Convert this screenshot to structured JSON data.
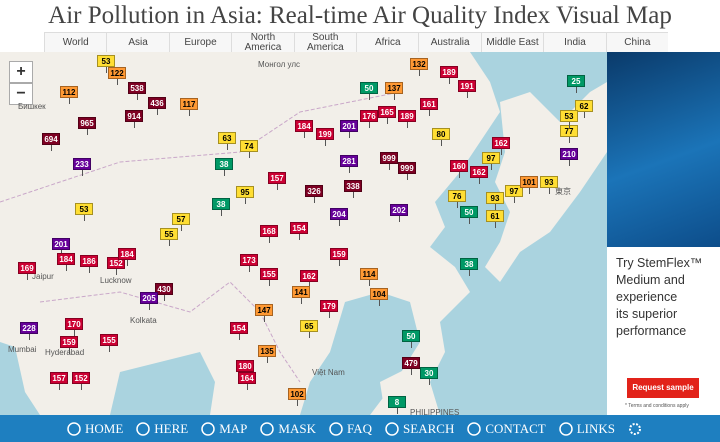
{
  "header": {
    "title": "Air Pollution in Asia: Real-time Air Quality Index Visual Map"
  },
  "nav_tabs": [
    "World",
    "Asia",
    "Europe",
    "North America",
    "South America",
    "Africa",
    "Australia",
    "Middle East",
    "India",
    "China"
  ],
  "zoom": {
    "in": "+",
    "out": "−"
  },
  "map_labels": [
    "Бишкек",
    "Монгол улс",
    "Jaipur",
    "Lucknow",
    "Kolkata",
    "Mumbai",
    "Hyderabad",
    "Việt Nam",
    "PHILIPPINES",
    "東京"
  ],
  "aqi_markers": [
    53,
    122,
    538,
    436,
    914,
    112,
    117,
    965,
    694,
    233,
    53,
    57,
    38,
    55,
    201,
    186,
    184,
    169,
    152,
    184,
    430,
    205,
    228,
    170,
    155,
    159,
    157,
    152,
    63,
    38,
    95,
    74,
    184,
    199,
    201,
    176,
    165,
    189,
    999,
    999,
    281,
    338,
    326,
    204,
    202,
    157,
    154,
    168,
    173,
    155,
    162,
    159,
    114,
    104,
    179,
    141,
    154,
    147,
    65,
    180,
    164,
    135,
    102,
    50,
    137,
    132,
    189,
    191,
    161,
    80,
    160,
    162,
    97,
    76,
    93,
    97,
    101,
    93,
    61,
    50,
    38,
    50,
    479,
    30,
    8,
    210,
    77,
    62,
    53,
    25,
    162
  ],
  "ad": {
    "lines": [
      "Try StemFlex™",
      "Medium and",
      "experience",
      "its superior",
      "performance"
    ],
    "button": "Request sample",
    "terms": "* Terms and conditions apply"
  },
  "menu": [
    "HOME",
    "HERE",
    "MAP",
    "MASK",
    "FAQ",
    "SEARCH",
    "CONTACT",
    "LINKS"
  ]
}
